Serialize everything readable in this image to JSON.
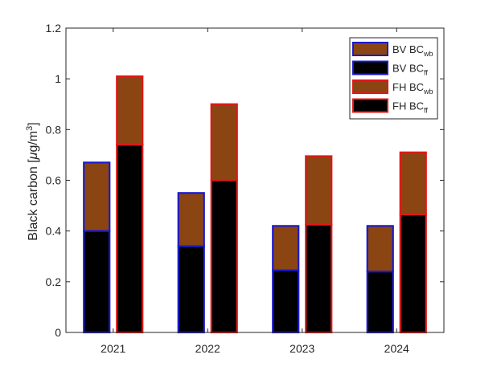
{
  "chart_data": {
    "type": "bar",
    "stacked": true,
    "grouped": true,
    "categories": [
      "2021",
      "2022",
      "2023",
      "2024"
    ],
    "ylabel": "Black carbon [μg/m³]",
    "ylabel_main": "Black carbon [",
    "ylabel_mu": "μ",
    "ylabel_unit": "g/m",
    "ylabel_sup": "3",
    "ylabel_close": "]",
    "ylim": [
      0,
      1.2
    ],
    "yticks": [
      0,
      0.2,
      0.4,
      0.6,
      0.8,
      1,
      1.2
    ],
    "ytick_labels": [
      "0",
      "0.2",
      "0.4",
      "0.6",
      "0.8",
      "1",
      "1.2"
    ],
    "groups": [
      {
        "site": "BV",
        "edge_color": "#1a1acc",
        "ff": [
          0.4,
          0.34,
          0.245,
          0.24
        ],
        "wb": [
          0.27,
          0.21,
          0.175,
          0.18
        ]
      },
      {
        "site": "FH",
        "edge_color": "#e01818",
        "ff": [
          0.74,
          0.6,
          0.425,
          0.465
        ],
        "wb": [
          0.27,
          0.3,
          0.27,
          0.245
        ]
      }
    ],
    "colors": {
      "wb": "#8b4513",
      "ff": "#000000"
    },
    "legend": {
      "position": "top-right",
      "entries": [
        {
          "base": "BV BC",
          "sub": "wb",
          "fill": "#8b4513",
          "edge": "#1a1acc"
        },
        {
          "base": "BV BC",
          "sub": "ff",
          "fill": "#000000",
          "edge": "#1a1acc"
        },
        {
          "base": "FH BC",
          "sub": "wb",
          "fill": "#8b4513",
          "edge": "#e01818"
        },
        {
          "base": "FH BC",
          "sub": "ff",
          "fill": "#000000",
          "edge": "#e01818"
        }
      ]
    },
    "grid": false
  }
}
